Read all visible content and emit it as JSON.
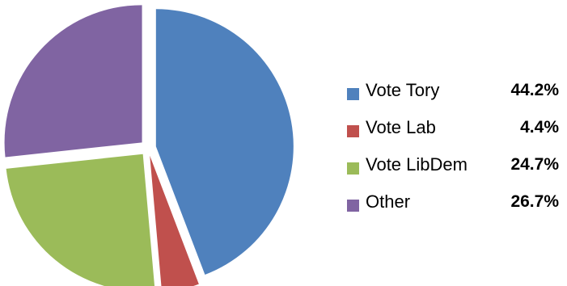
{
  "chart_data": {
    "type": "pie",
    "title": "",
    "exploded": true,
    "legend_position": "right",
    "slices": [
      {
        "label": "Vote Tory",
        "value": 44.2,
        "value_label": "44.2%",
        "color": "#4F81BD"
      },
      {
        "label": "Vote Lab",
        "value": 4.4,
        "value_label": "4.4%",
        "color": "#C0504D"
      },
      {
        "label": "Vote LibDem",
        "value": 24.7,
        "value_label": "24.7%",
        "color": "#9BBB59"
      },
      {
        "label": "Other",
        "value": 26.7,
        "value_label": "26.7%",
        "color": "#8064A2"
      }
    ]
  }
}
